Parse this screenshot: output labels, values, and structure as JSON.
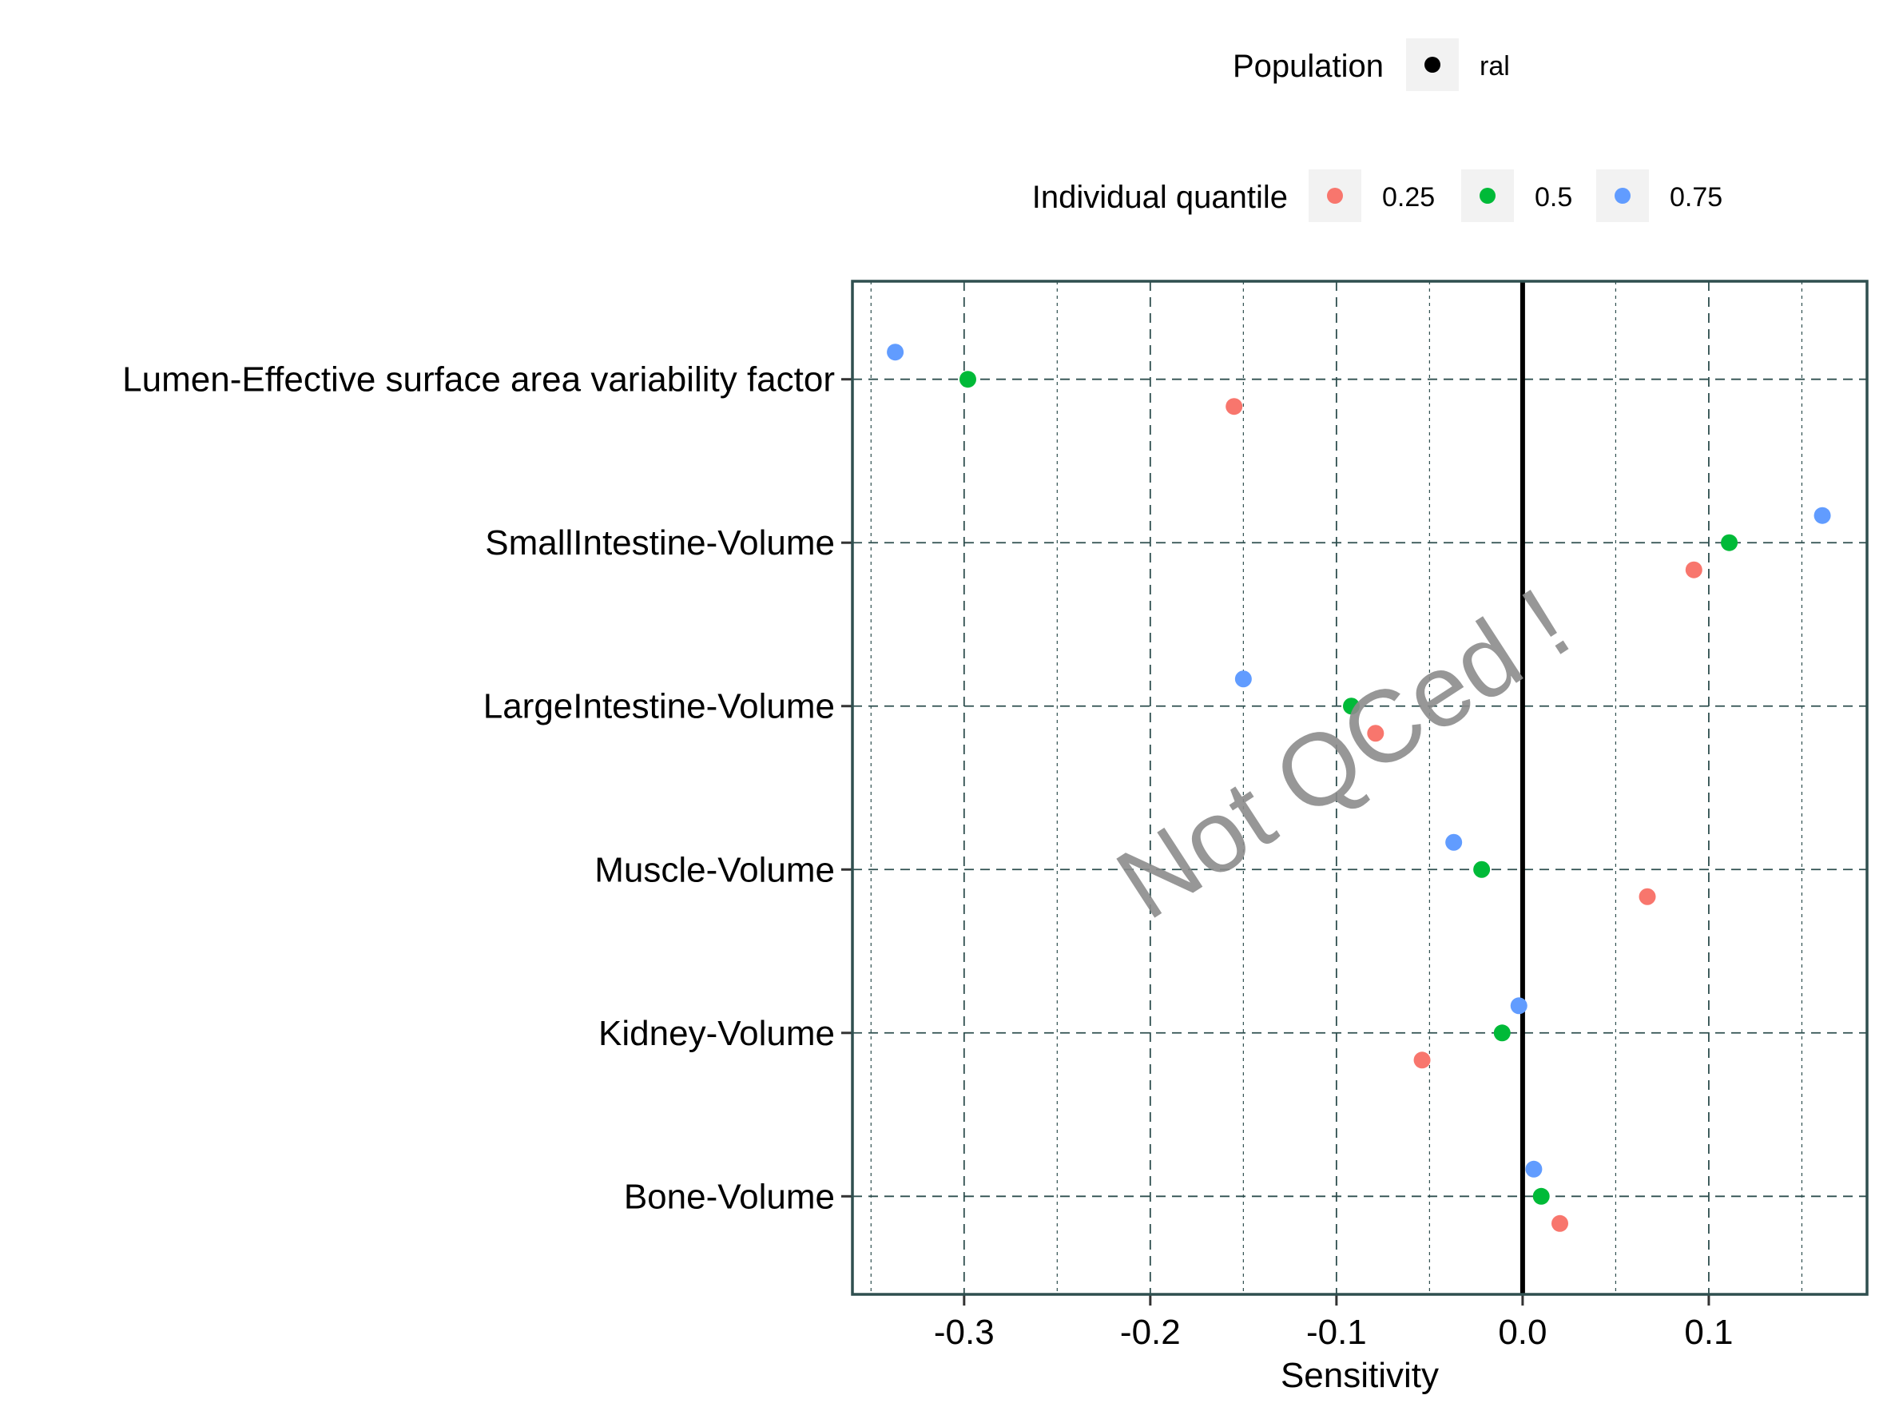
{
  "legend": {
    "population": {
      "title": "Population",
      "items": [
        {
          "label": "ral",
          "color": "#000000"
        }
      ]
    },
    "quantile": {
      "title": "Individual quantile",
      "items": [
        {
          "label": "0.25",
          "color": "#F8766D"
        },
        {
          "label": "0.5",
          "color": "#00BA38"
        },
        {
          "label": "0.75",
          "color": "#619CFF"
        }
      ]
    }
  },
  "watermark": "Not QCed !",
  "chart_data": {
    "type": "scatter",
    "title": "",
    "xlabel": "Sensitivity",
    "ylabel": "",
    "xlim": [
      -0.36,
      0.185
    ],
    "xticks": [
      {
        "value": -0.3,
        "label": "-0.3"
      },
      {
        "value": -0.2,
        "label": "-0.2"
      },
      {
        "value": -0.1,
        "label": "-0.1"
      },
      {
        "value": 0.0,
        "label": "0.0"
      },
      {
        "value": 0.1,
        "label": "0.1"
      }
    ],
    "minor_xgrid": [
      -0.35,
      -0.25,
      -0.15,
      -0.05,
      0.05,
      0.15
    ],
    "reference_line_x": 0,
    "grid": true,
    "legend_position": "top",
    "categories": [
      "Lumen-Effective surface area variability factor",
      "SmallIntestine-Volume",
      "LargeIntestine-Volume",
      "Muscle-Volume",
      "Kidney-Volume",
      "Bone-Volume"
    ],
    "series": [
      {
        "name": "0.25",
        "color": "#F8766D",
        "values": [
          -0.155,
          0.092,
          -0.079,
          0.067,
          -0.054,
          0.02
        ]
      },
      {
        "name": "0.5",
        "color": "#00BA38",
        "values": [
          -0.298,
          0.111,
          -0.092,
          -0.022,
          -0.011,
          0.01
        ]
      },
      {
        "name": "0.75",
        "color": "#619CFF",
        "values": [
          -0.337,
          0.161,
          -0.15,
          -0.037,
          -0.002,
          0.006
        ]
      }
    ]
  }
}
